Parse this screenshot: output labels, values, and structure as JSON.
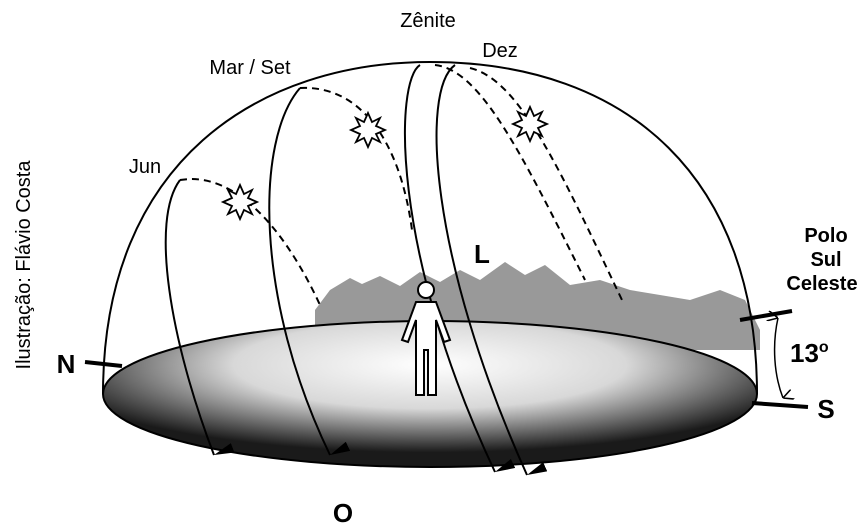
{
  "labels": {
    "zenith": "Zênite",
    "december": "Dez",
    "equinox": "Mar / Set",
    "june": "Jun",
    "east": "L",
    "west": "O",
    "north": "N",
    "south": "S",
    "pole": [
      "Polo",
      "Sul",
      "Celeste"
    ],
    "angle": "13",
    "angle_unit": "o"
  },
  "credit": "Ilustração: Flávio Costa"
}
